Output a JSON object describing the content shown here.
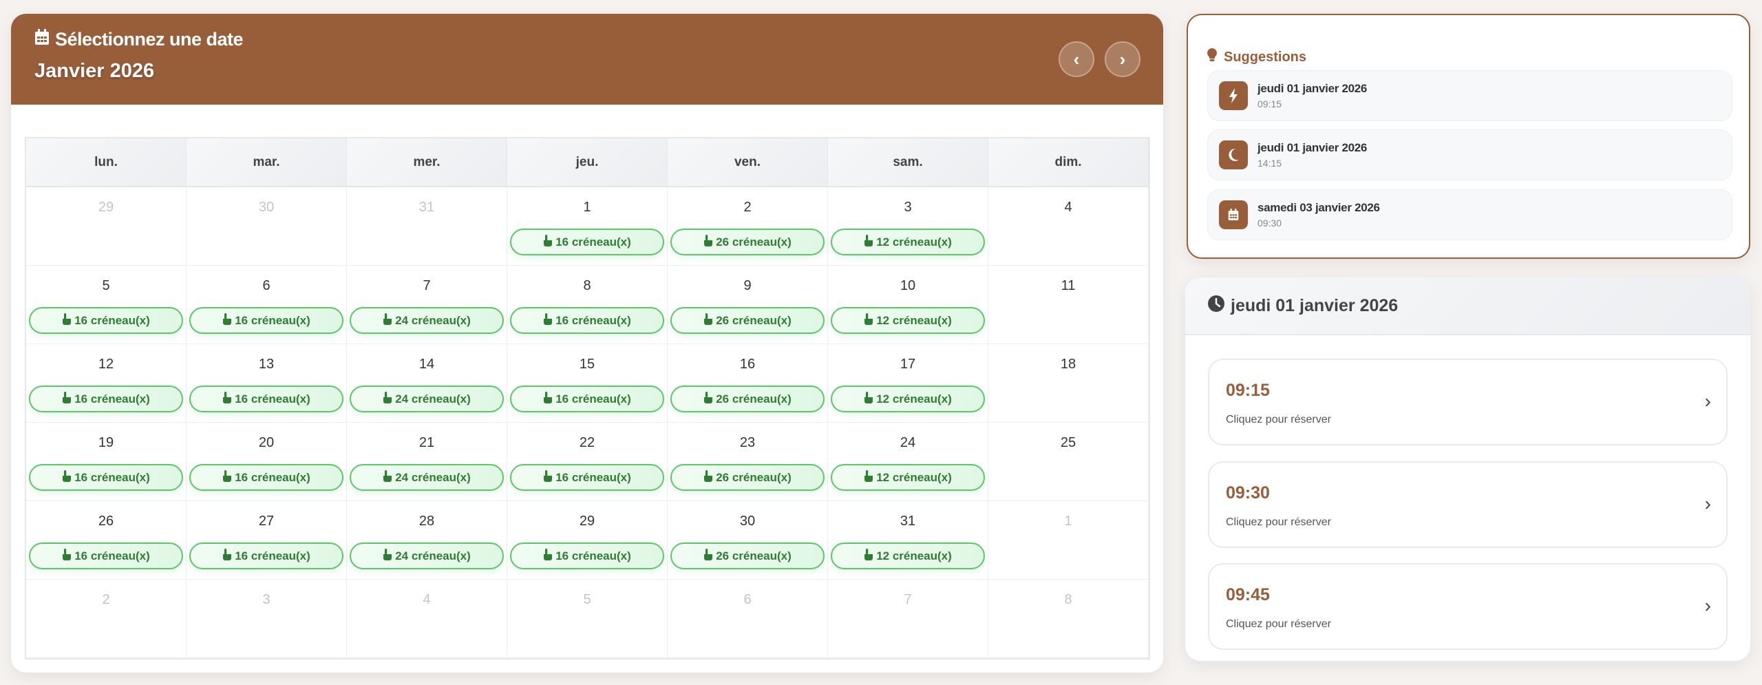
{
  "colors": {
    "brand": "#985e3a",
    "slot_green": "#2e7d32",
    "slot_border": "#5cc66b"
  },
  "calendar": {
    "title": "Sélectionnez une date",
    "title_icon": "calendar-icon",
    "month": "Janvier 2026",
    "prev_icon": "chevron-left-icon",
    "next_icon": "chevron-right-icon",
    "weekdays": [
      "lun.",
      "mar.",
      "mer.",
      "jeu.",
      "ven.",
      "sam.",
      "dim."
    ],
    "slot_icon": "hand-pointer-icon",
    "weeks": [
      [
        {
          "day": "29",
          "muted": true
        },
        {
          "day": "30",
          "muted": true
        },
        {
          "day": "31",
          "muted": true
        },
        {
          "day": "1",
          "slots": "16 créneau(x)"
        },
        {
          "day": "2",
          "slots": "26 créneau(x)"
        },
        {
          "day": "3",
          "slots": "12 créneau(x)"
        },
        {
          "day": "4"
        }
      ],
      [
        {
          "day": "5",
          "slots": "16 créneau(x)"
        },
        {
          "day": "6",
          "slots": "16 créneau(x)"
        },
        {
          "day": "7",
          "slots": "24 créneau(x)"
        },
        {
          "day": "8",
          "slots": "16 créneau(x)"
        },
        {
          "day": "9",
          "slots": "26 créneau(x)"
        },
        {
          "day": "10",
          "slots": "12 créneau(x)"
        },
        {
          "day": "11"
        }
      ],
      [
        {
          "day": "12",
          "slots": "16 créneau(x)"
        },
        {
          "day": "13",
          "slots": "16 créneau(x)"
        },
        {
          "day": "14",
          "slots": "24 créneau(x)"
        },
        {
          "day": "15",
          "slots": "16 créneau(x)"
        },
        {
          "day": "16",
          "slots": "26 créneau(x)"
        },
        {
          "day": "17",
          "slots": "12 créneau(x)"
        },
        {
          "day": "18"
        }
      ],
      [
        {
          "day": "19",
          "slots": "16 créneau(x)"
        },
        {
          "day": "20",
          "slots": "16 créneau(x)"
        },
        {
          "day": "21",
          "slots": "24 créneau(x)"
        },
        {
          "day": "22",
          "slots": "16 créneau(x)"
        },
        {
          "day": "23",
          "slots": "26 créneau(x)"
        },
        {
          "day": "24",
          "slots": "12 créneau(x)"
        },
        {
          "day": "25"
        }
      ],
      [
        {
          "day": "26",
          "slots": "16 créneau(x)"
        },
        {
          "day": "27",
          "slots": "16 créneau(x)"
        },
        {
          "day": "28",
          "slots": "24 créneau(x)"
        },
        {
          "day": "29",
          "slots": "16 créneau(x)"
        },
        {
          "day": "30",
          "slots": "26 créneau(x)"
        },
        {
          "day": "31",
          "slots": "12 créneau(x)"
        },
        {
          "day": "1",
          "muted": true
        }
      ],
      [
        {
          "day": "2",
          "muted": true
        },
        {
          "day": "3",
          "muted": true
        },
        {
          "day": "4",
          "muted": true
        },
        {
          "day": "5",
          "muted": true
        },
        {
          "day": "6",
          "muted": true
        },
        {
          "day": "7",
          "muted": true
        },
        {
          "day": "8",
          "muted": true
        }
      ]
    ]
  },
  "suggestions": {
    "title": "Suggestions",
    "title_icon": "lightbulb-icon",
    "items": [
      {
        "date": "jeudi 01 janvier 2026",
        "time": "09:15",
        "icon": "bolt-icon"
      },
      {
        "date": "jeudi 01 janvier 2026",
        "time": "14:15",
        "icon": "moon-icon"
      },
      {
        "date": "samedi 03 janvier 2026",
        "time": "09:30",
        "icon": "calendar-icon"
      }
    ]
  },
  "times": {
    "title": "jeudi 01 janvier 2026",
    "title_icon": "clock-icon",
    "slots": [
      {
        "time": "09:15",
        "action": "Cliquez pour réserver"
      },
      {
        "time": "09:30",
        "action": "Cliquez pour réserver"
      },
      {
        "time": "09:45",
        "action": "Cliquez pour réserver"
      }
    ]
  }
}
